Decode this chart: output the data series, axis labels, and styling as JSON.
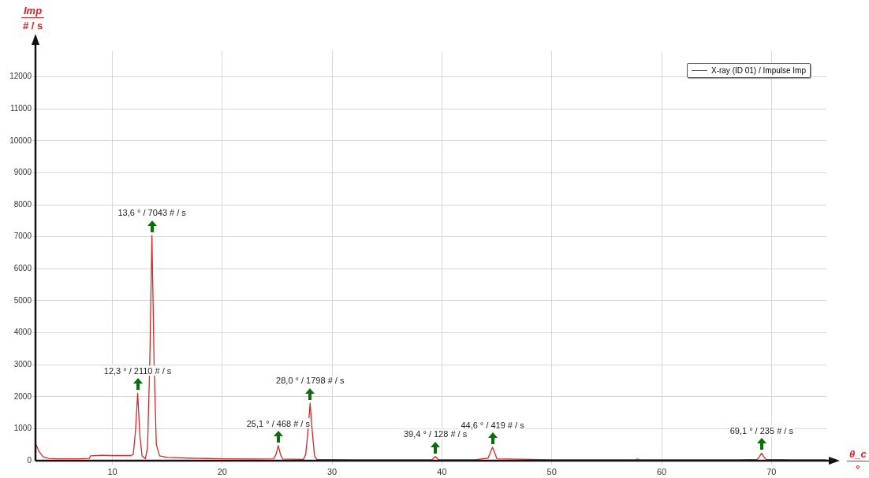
{
  "chart_data": {
    "type": "line",
    "ylabel": "Imp\n# / s",
    "xlabel": "θ_c\n°",
    "x": [
      3,
      3.3,
      3.7,
      4.2,
      5,
      6,
      7,
      7.9,
      8,
      9,
      10,
      11,
      11.7,
      11.9,
      12.1,
      12.3,
      12.5,
      12.7,
      13.0,
      13.2,
      13.4,
      13.6,
      13.8,
      14.0,
      14.3,
      15,
      17,
      20,
      23,
      24.7,
      24.9,
      25.1,
      25.3,
      25.5,
      27.4,
      27.6,
      27.8,
      28.0,
      28.2,
      28.4,
      28.6,
      32,
      36,
      39.1,
      39.4,
      39.7,
      43,
      44.2,
      44.4,
      44.6,
      44.8,
      45.0,
      50,
      55,
      57.6,
      57.8,
      58.0,
      62,
      67,
      68.7,
      68.9,
      69.1,
      69.3,
      69.5,
      72,
      75
    ],
    "series": [
      {
        "name": "X-ray (ID 01) / Impulse Imp",
        "color": "#d42a2a",
        "values": [
          540,
          300,
          120,
          70,
          60,
          60,
          60,
          70,
          150,
          170,
          160,
          160,
          160,
          200,
          900,
          2110,
          800,
          150,
          60,
          400,
          3000,
          7043,
          3000,
          500,
          150,
          100,
          80,
          60,
          50,
          60,
          200,
          468,
          200,
          50,
          40,
          200,
          900,
          1798,
          900,
          150,
          40,
          30,
          30,
          30,
          128,
          30,
          30,
          80,
          250,
          419,
          250,
          60,
          30,
          30,
          30,
          50,
          30,
          30,
          30,
          40,
          120,
          235,
          120,
          40,
          30,
          30
        ]
      }
    ],
    "xlim": [
      3,
      75
    ],
    "xticks": [
      10,
      20,
      30,
      40,
      50,
      60,
      70
    ],
    "ylim": [
      0,
      12800
    ],
    "yticks": [
      0,
      1000,
      2000,
      3000,
      4000,
      5000,
      6000,
      7000,
      8000,
      9000,
      10000,
      11000,
      12000
    ],
    "grid": true,
    "legend": "top right",
    "marker": "none",
    "line_style": "solid",
    "annotations": [
      {
        "text": "12,3 ° / 2110 # / s",
        "x": 12.3,
        "y": 2110
      },
      {
        "text": "13,6 ° / 7043 # / s",
        "x": 13.6,
        "y": 7043
      },
      {
        "text": "25,1 ° / 468 # / s",
        "x": 25.1,
        "y": 468
      },
      {
        "text": "28,0 ° / 1798 # / s",
        "x": 28.0,
        "y": 1798
      },
      {
        "text": "39,4 ° / 128 # / s",
        "x": 39.4,
        "y": 128
      },
      {
        "text": "44,6 ° / 419 # / s",
        "x": 44.6,
        "y": 419
      },
      {
        "text": "69,1 ° / 235 # / s",
        "x": 69.1,
        "y": 235
      }
    ]
  }
}
